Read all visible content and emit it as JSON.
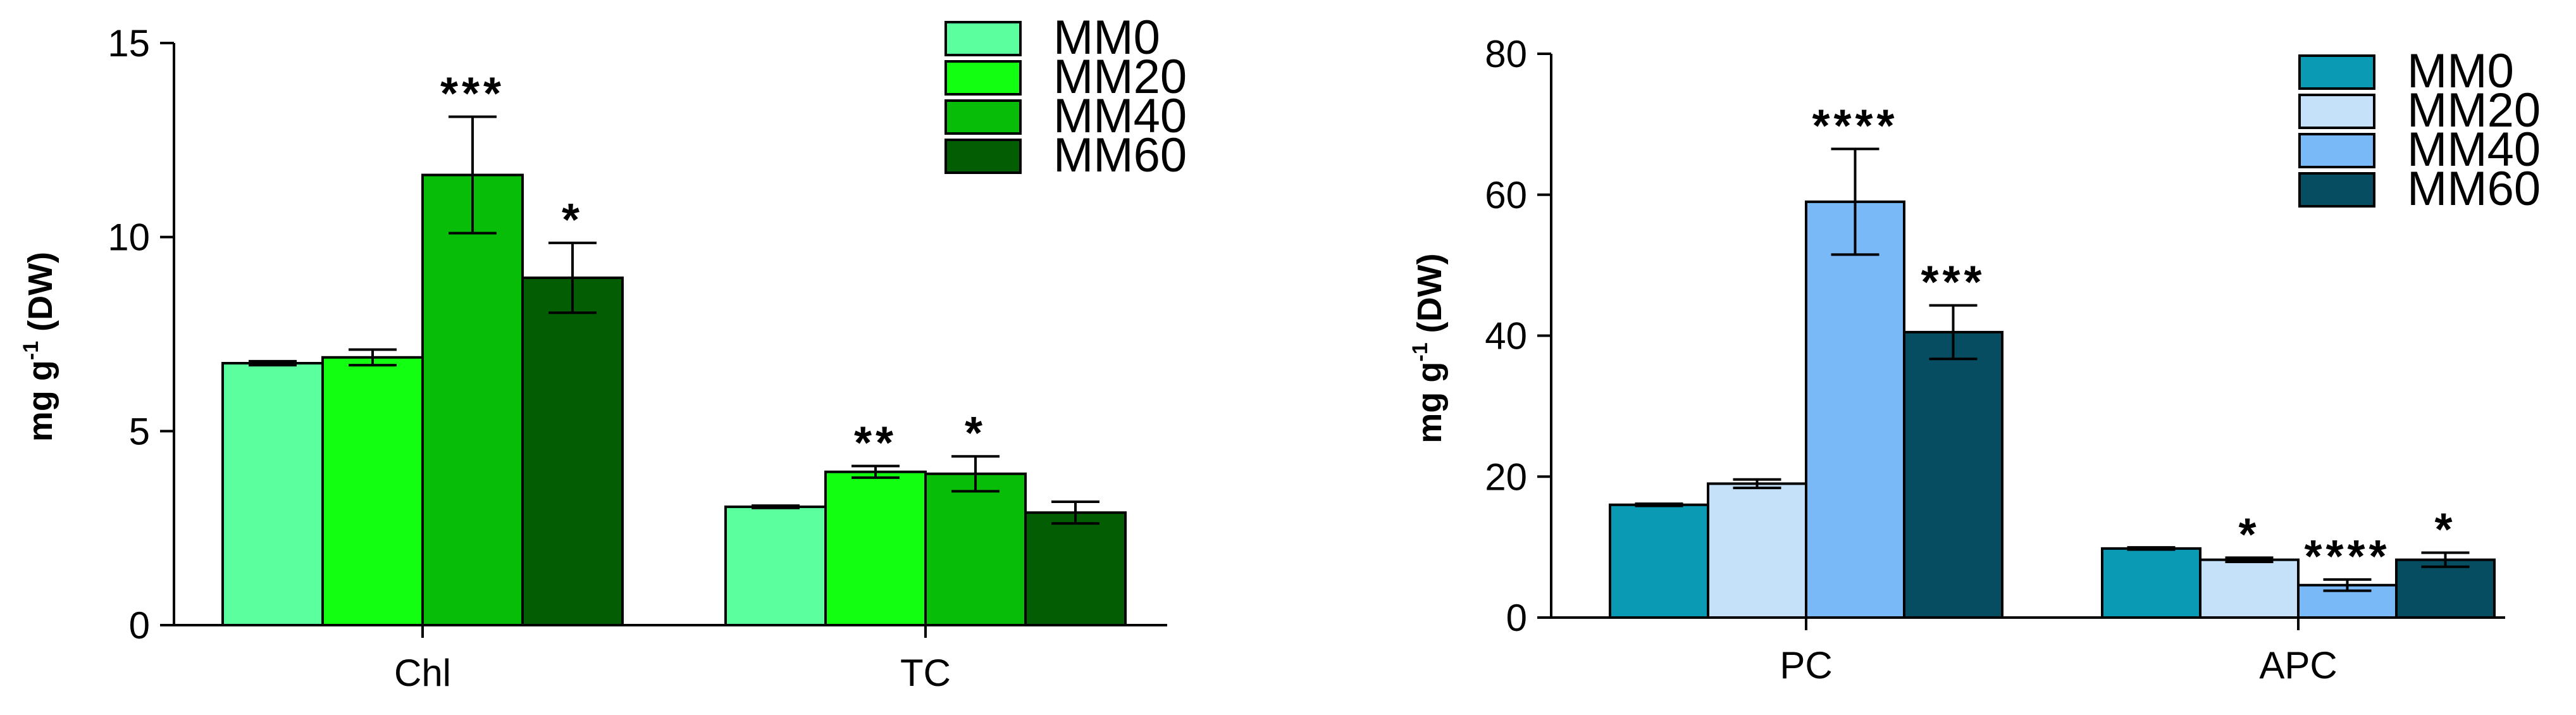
{
  "chart_data": [
    {
      "type": "bar",
      "title": "",
      "xlabel": "",
      "ylabel": "mg g-1 (DW)",
      "ylabel_parts": {
        "pre": "mg g",
        "sup": "-1",
        "post": " (DW)"
      },
      "ylim": [
        0,
        15
      ],
      "yticks": [
        0,
        5,
        10,
        15
      ],
      "ytick_labels": [
        "0",
        "5",
        "10",
        "15"
      ],
      "categories": [
        "Chl",
        "TC"
      ],
      "legend_position": "top-right",
      "series": [
        {
          "name": "MM0",
          "color": "#5cff9d",
          "values": [
            6.75,
            3.05
          ],
          "errors": [
            0.05,
            0.03
          ],
          "significance": [
            "",
            ""
          ]
        },
        {
          "name": "MM20",
          "color": "#12ff12",
          "values": [
            6.9,
            3.95
          ],
          "errors": [
            0.2,
            0.15
          ],
          "significance": [
            "",
            "**"
          ]
        },
        {
          "name": "MM40",
          "color": "#07bd07",
          "values": [
            11.6,
            3.9
          ],
          "errors": [
            1.5,
            0.45
          ],
          "significance": [
            "***",
            "*"
          ]
        },
        {
          "name": "MM60",
          "color": "#035e03",
          "values": [
            8.95,
            2.9
          ],
          "errors": [
            0.9,
            0.28
          ],
          "significance": [
            "*",
            ""
          ]
        }
      ]
    },
    {
      "type": "bar",
      "title": "",
      "xlabel": "",
      "ylabel": "mg g-1 (DW)",
      "ylabel_parts": {
        "pre": "mg g",
        "sup": "-1",
        "post": " (DW)"
      },
      "ylim": [
        0,
        80
      ],
      "yticks": [
        0,
        20,
        40,
        60,
        80
      ],
      "ytick_labels": [
        "0",
        "20",
        "40",
        "60",
        "80"
      ],
      "categories": [
        "PC",
        "APC"
      ],
      "legend_position": "top-right",
      "series": [
        {
          "name": "MM0",
          "color": "#0a9ab3",
          "values": [
            16.0,
            9.8
          ],
          "errors": [
            0.15,
            0.15
          ],
          "significance": [
            "",
            ""
          ]
        },
        {
          "name": "MM20",
          "color": "#c5e0f9",
          "values": [
            19.0,
            8.2
          ],
          "errors": [
            0.6,
            0.3
          ],
          "significance": [
            "",
            "*"
          ]
        },
        {
          "name": "MM40",
          "color": "#7ab9f8",
          "values": [
            59.0,
            4.6
          ],
          "errors": [
            7.5,
            0.8
          ],
          "significance": [
            "****",
            "****"
          ]
        },
        {
          "name": "MM60",
          "color": "#064d62",
          "values": [
            40.5,
            8.2
          ],
          "errors": [
            3.8,
            1.0
          ],
          "significance": [
            "***",
            "*"
          ]
        }
      ]
    }
  ]
}
